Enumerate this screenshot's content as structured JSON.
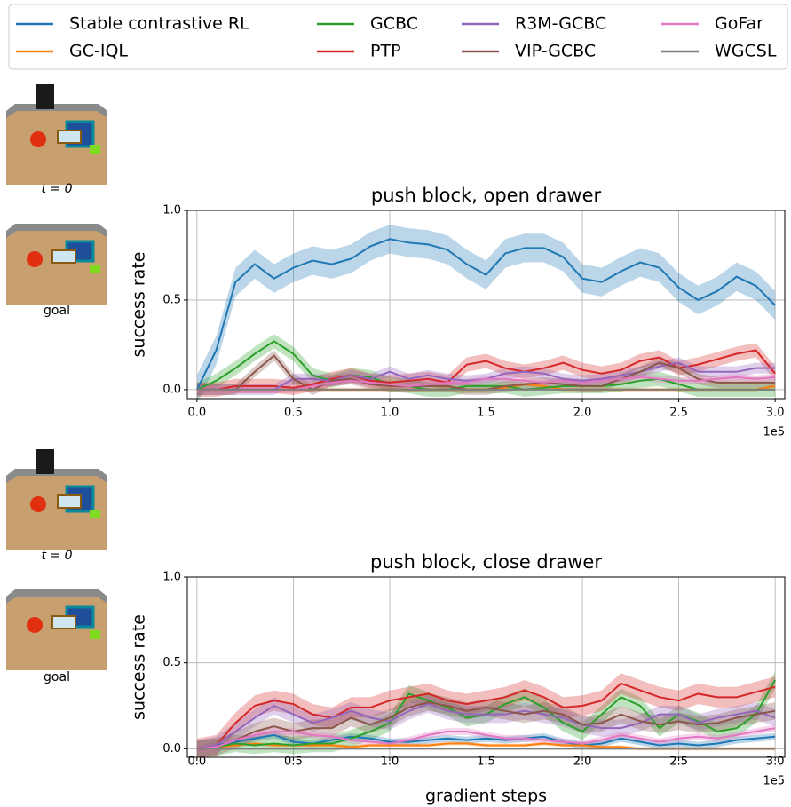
{
  "chart_data": [
    {
      "type": "line",
      "title": "push block, open drawer",
      "ylabel": "success rate",
      "x_offset_label": "1e5",
      "image_captions": [
        "t = 0",
        "goal"
      ],
      "x": [
        0,
        0.1,
        0.2,
        0.3,
        0.4,
        0.5,
        0.6,
        0.7,
        0.8,
        0.9,
        1.0,
        1.1,
        1.2,
        1.3,
        1.4,
        1.5,
        1.6,
        1.7,
        1.8,
        1.9,
        2.0,
        2.1,
        2.2,
        2.3,
        2.4,
        2.5,
        2.6,
        2.7,
        2.8,
        2.9,
        3.0
      ],
      "xlim": [
        -0.05,
        3.05
      ],
      "ylim": [
        -0.05,
        1.0
      ],
      "xticks": [
        {
          "value": 0,
          "label": "0.0"
        },
        0.5,
        {
          "value": 1,
          "label": "1.0"
        },
        1.5,
        {
          "value": 2,
          "label": "2.0"
        },
        2.5,
        {
          "value": 3,
          "label": "3.0"
        }
      ],
      "yticks": [
        {
          "value": 0,
          "label": "0.0"
        },
        0.5,
        {
          "value": 1,
          "label": "1.0"
        }
      ],
      "grid": true,
      "legend": "top",
      "series": [
        {
          "name": "Stable contrastive RL",
          "color": "#1f77b4",
          "error": 0.08,
          "values": [
            0,
            0.22,
            0.6,
            0.7,
            0.62,
            0.68,
            0.72,
            0.7,
            0.73,
            0.8,
            0.84,
            0.82,
            0.81,
            0.78,
            0.7,
            0.64,
            0.76,
            0.79,
            0.79,
            0.74,
            0.62,
            0.6,
            0.66,
            0.71,
            0.68,
            0.57,
            0.5,
            0.55,
            0.63,
            0.58,
            0.47
          ]
        },
        {
          "name": "GC-IQL",
          "color": "#ff7f0e",
          "error": 0.01,
          "values": [
            0,
            0,
            0,
            0,
            0,
            0,
            0,
            0,
            0,
            0,
            0,
            0,
            0,
            0,
            0,
            0,
            0.01,
            0.03,
            0.02,
            0,
            0,
            0,
            0,
            0,
            0,
            0,
            0,
            0,
            0,
            0,
            0.02
          ]
        },
        {
          "name": "GCBC",
          "color": "#2ca02c",
          "error": 0.04,
          "values": [
            0,
            0.05,
            0.12,
            0.2,
            0.27,
            0.2,
            0.08,
            0.05,
            0.08,
            0.07,
            0.03,
            0.02,
            0,
            0,
            0.02,
            0.02,
            0.02,
            0,
            0.01,
            0.02,
            0.02,
            0.02,
            0.03,
            0.05,
            0.06,
            0.03,
            0,
            0,
            0,
            0,
            0
          ]
        },
        {
          "name": "PTP",
          "color": "#d62728",
          "error": 0.04,
          "values": [
            0,
            0,
            0.02,
            0.02,
            0.02,
            0.01,
            0.03,
            0.06,
            0.08,
            0.05,
            0.04,
            0.05,
            0.06,
            0.04,
            0.14,
            0.16,
            0.12,
            0.1,
            0.12,
            0.15,
            0.11,
            0.09,
            0.11,
            0.16,
            0.18,
            0.12,
            0.14,
            0.17,
            0.2,
            0.22,
            0.09
          ]
        },
        {
          "name": "R3M-GCBC",
          "color": "#9467bd",
          "error": 0.03,
          "values": [
            0,
            0,
            0,
            0,
            0,
            0.06,
            0.06,
            0.05,
            0.08,
            0.06,
            0.1,
            0.06,
            0.08,
            0.06,
            0.05,
            0.06,
            0.09,
            0.1,
            0.09,
            0.06,
            0.05,
            0.06,
            0.08,
            0.1,
            0.13,
            0.15,
            0.1,
            0.1,
            0.1,
            0.12,
            0.12
          ]
        },
        {
          "name": "VIP-GCBC",
          "color": "#8c564b",
          "error": 0.03,
          "values": [
            0,
            0,
            0,
            0.1,
            0.19,
            0.06,
            0,
            0.05,
            0.06,
            0.03,
            0.02,
            0.02,
            0.02,
            0.02,
            0,
            0,
            0.02,
            0.03,
            0.04,
            0.03,
            0.02,
            0.02,
            0.06,
            0.1,
            0.15,
            0.12,
            0.06,
            0.04,
            0.04,
            0.04,
            0.04
          ]
        },
        {
          "name": "GoFar",
          "color": "#e377c2",
          "error": 0.02,
          "values": [
            0,
            0,
            0,
            0,
            0,
            0,
            0.02,
            0.04,
            0.05,
            0.04,
            0.03,
            0.02,
            0.03,
            0.04,
            0.04,
            0.06,
            0.06,
            0.05,
            0.04,
            0.05,
            0.04,
            0.05,
            0.06,
            0.07,
            0.06,
            0.05,
            0.05,
            0.06,
            0.07,
            0.06,
            0.07
          ]
        },
        {
          "name": "WGCSL",
          "color": "#7f7f7f",
          "error": 0,
          "values": [
            0,
            0,
            0,
            0,
            0,
            0,
            0,
            0,
            0,
            0,
            0,
            0,
            0,
            0,
            0,
            0,
            0,
            0,
            0,
            0,
            0,
            0,
            0,
            0,
            0,
            0,
            0,
            0,
            0,
            0,
            0
          ]
        }
      ]
    },
    {
      "type": "line",
      "title": "push block, close drawer",
      "ylabel": "success rate",
      "xlabel": "gradient steps",
      "x_offset_label": "1e5",
      "image_captions": [
        "t = 0",
        "goal"
      ],
      "x": [
        0,
        0.1,
        0.2,
        0.3,
        0.4,
        0.5,
        0.6,
        0.7,
        0.8,
        0.9,
        1.0,
        1.1,
        1.2,
        1.3,
        1.4,
        1.5,
        1.6,
        1.7,
        1.8,
        1.9,
        2.0,
        2.1,
        2.2,
        2.3,
        2.4,
        2.5,
        2.6,
        2.7,
        2.8,
        2.9,
        3.0
      ],
      "xlim": [
        -0.05,
        3.05
      ],
      "ylim": [
        -0.05,
        1.0
      ],
      "xticks": [
        {
          "value": 0,
          "label": "0.0"
        },
        0.5,
        {
          "value": 1,
          "label": "1.0"
        },
        1.5,
        {
          "value": 2,
          "label": "2.0"
        },
        2.5,
        {
          "value": 3,
          "label": "3.0"
        }
      ],
      "yticks": [
        {
          "value": 0,
          "label": "0.0"
        },
        0.5,
        {
          "value": 1,
          "label": "1.0"
        }
      ],
      "grid": true,
      "series": [
        {
          "color": "#1f77b4",
          "error": 0.02,
          "values": [
            0,
            0.02,
            0.04,
            0.06,
            0.08,
            0.04,
            0.03,
            0.05,
            0.07,
            0.06,
            0.04,
            0.04,
            0.05,
            0.06,
            0.05,
            0.06,
            0.05,
            0.06,
            0.07,
            0.04,
            0.02,
            0.03,
            0.06,
            0.04,
            0.02,
            0.03,
            0.02,
            0.03,
            0.05,
            0.06,
            0.07
          ]
        },
        {
          "color": "#ff7f0e",
          "error": 0.01,
          "values": [
            0,
            0.01,
            0.02,
            0.03,
            0.02,
            0.02,
            0.02,
            0.02,
            0.01,
            0.02,
            0.02,
            0.02,
            0.02,
            0.03,
            0.03,
            0.02,
            0.02,
            0.02,
            0.03,
            0.02,
            0.02,
            0.01,
            0.01,
            0,
            0,
            0,
            0,
            0,
            0,
            0,
            0
          ]
        },
        {
          "color": "#2ca02c",
          "error": 0.05,
          "values": [
            0,
            0.01,
            0.03,
            0.02,
            0.03,
            0.02,
            0.03,
            0.03,
            0.06,
            0.1,
            0.15,
            0.32,
            0.28,
            0.24,
            0.18,
            0.2,
            0.26,
            0.3,
            0.24,
            0.15,
            0.1,
            0.2,
            0.3,
            0.25,
            0.12,
            0.2,
            0.16,
            0.1,
            0.12,
            0.2,
            0.4
          ]
        },
        {
          "color": "#d62728",
          "error": 0.06,
          "values": [
            0,
            0.02,
            0.15,
            0.25,
            0.28,
            0.26,
            0.2,
            0.18,
            0.24,
            0.24,
            0.28,
            0.3,
            0.32,
            0.28,
            0.26,
            0.28,
            0.3,
            0.34,
            0.3,
            0.24,
            0.25,
            0.28,
            0.38,
            0.34,
            0.3,
            0.28,
            0.32,
            0.3,
            0.3,
            0.33,
            0.36
          ]
        },
        {
          "color": "#9467bd",
          "error": 0.05,
          "values": [
            0,
            0.02,
            0.1,
            0.18,
            0.25,
            0.2,
            0.15,
            0.18,
            0.22,
            0.18,
            0.16,
            0.22,
            0.26,
            0.22,
            0.2,
            0.2,
            0.2,
            0.22,
            0.2,
            0.18,
            0.14,
            0.12,
            0.12,
            0.15,
            0.2,
            0.2,
            0.15,
            0.18,
            0.2,
            0.22,
            0.18
          ]
        },
        {
          "color": "#8c564b",
          "error": 0.05,
          "values": [
            0,
            0.01,
            0.05,
            0.1,
            0.13,
            0.1,
            0.12,
            0.12,
            0.18,
            0.14,
            0.18,
            0.24,
            0.27,
            0.25,
            0.22,
            0.24,
            0.22,
            0.2,
            0.22,
            0.2,
            0.14,
            0.15,
            0.2,
            0.16,
            0.14,
            0.16,
            0.14,
            0.15,
            0.18,
            0.2,
            0.22
          ]
        },
        {
          "color": "#e377c2",
          "error": 0.02,
          "values": [
            0,
            0.01,
            0.05,
            0.08,
            0.1,
            0.1,
            0.08,
            0.07,
            0.05,
            0.04,
            0.03,
            0.05,
            0.08,
            0.1,
            0.1,
            0.08,
            0.06,
            0.06,
            0.05,
            0.04,
            0.03,
            0.05,
            0.08,
            0.06,
            0.04,
            0.06,
            0.07,
            0.06,
            0.08,
            0.1,
            0.12
          ]
        },
        {
          "color": "#7f7f7f",
          "error": 0,
          "values": [
            0,
            0,
            0,
            0,
            0,
            0,
            0,
            0,
            0,
            0,
            0,
            0,
            0,
            0,
            0,
            0,
            0,
            0,
            0,
            0,
            0,
            0,
            0,
            0,
            0,
            0,
            0,
            0,
            0,
            0,
            0
          ]
        }
      ]
    }
  ]
}
